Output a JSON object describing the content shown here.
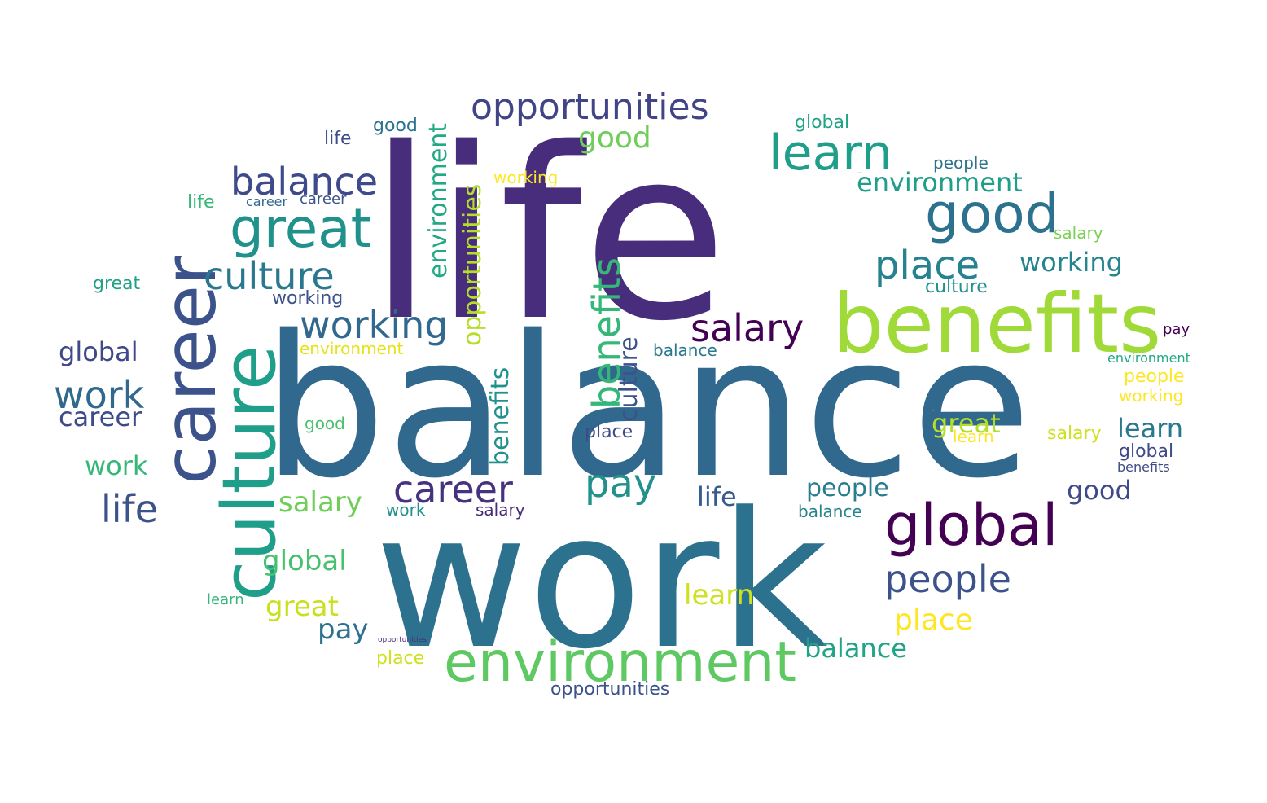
{
  "words": [
    {
      "t": "life",
      "c": "#472d7b"
    },
    {
      "t": "balance",
      "c": "#31688e"
    },
    {
      "t": "work",
      "c": "#2c728e"
    },
    {
      "t": "benefits",
      "c": "#a0da39"
    },
    {
      "t": "career",
      "c": "#3b528b"
    },
    {
      "t": "culture",
      "c": "#1f9e89"
    },
    {
      "t": "environment",
      "c": "#5ec962"
    },
    {
      "t": "global",
      "c": "#440154"
    },
    {
      "t": "opportunities",
      "c": "#414487"
    },
    {
      "t": "great",
      "c": "#21918c"
    },
    {
      "t": "good",
      "c": "#2c728e"
    },
    {
      "t": "learn",
      "c": "#1f9e89"
    },
    {
      "t": "salary",
      "c": "#440154"
    },
    {
      "t": "place",
      "c": "#26828e"
    },
    {
      "t": "people",
      "c": "#3b528b"
    },
    {
      "t": "balance",
      "c": "#3e4a89"
    },
    {
      "t": "culture",
      "c": "#2a788e"
    },
    {
      "t": "working",
      "c": "#31688e"
    },
    {
      "t": "career",
      "c": "#46327e"
    },
    {
      "t": "pay",
      "c": "#21918c"
    },
    {
      "t": "environment",
      "c": "#1f9e89"
    },
    {
      "t": "benefits",
      "c": "#35b779"
    },
    {
      "t": "opportunities",
      "c": "#b5de2b"
    },
    {
      "t": "environment",
      "c": "#22a884"
    },
    {
      "t": "benefits",
      "c": "#21918c"
    },
    {
      "t": "culture",
      "c": "#3b528b"
    },
    {
      "t": "work",
      "c": "#31688e"
    },
    {
      "t": "life",
      "c": "#3b528b"
    },
    {
      "t": "great",
      "c": "#c8e020"
    },
    {
      "t": "people",
      "c": "#287c8e"
    },
    {
      "t": "good",
      "c": "#6ece58"
    },
    {
      "t": "place",
      "c": "#fde725"
    },
    {
      "t": "learn",
      "c": "#cde11d"
    },
    {
      "t": "global",
      "c": "#48c16e"
    },
    {
      "t": "salary",
      "c": "#6ece58"
    },
    {
      "t": "global",
      "c": "#3f4889"
    },
    {
      "t": "career",
      "c": "#3e4a89"
    },
    {
      "t": "work",
      "c": "#35b779"
    },
    {
      "t": "working",
      "c": "#25848e"
    },
    {
      "t": "environment",
      "c": "#287c8e"
    },
    {
      "t": "balance",
      "c": "#20a386"
    },
    {
      "t": "great",
      "c": "#b5de2b"
    },
    {
      "t": "pay",
      "c": "#2c728e"
    },
    {
      "t": "good",
      "c": "#3e4a89"
    },
    {
      "t": "life",
      "c": "#365c8d"
    },
    {
      "t": "opportunities",
      "c": "#3b528b"
    },
    {
      "t": "learn",
      "c": "#fde725"
    },
    {
      "t": "working",
      "c": "#fde725"
    },
    {
      "t": "salary",
      "c": "#cde11d"
    },
    {
      "t": "great",
      "c": "#fde725"
    },
    {
      "t": "learn",
      "c": "#2a788e"
    },
    {
      "t": "people",
      "c": "#fde725"
    },
    {
      "t": "working",
      "c": "#3b528b"
    },
    {
      "t": "global",
      "c": "#3e4a89"
    },
    {
      "t": "benefits",
      "c": "#3e4a89"
    },
    {
      "t": "place",
      "c": "#cde11d"
    },
    {
      "t": "pay",
      "c": "#440154"
    },
    {
      "t": "environment",
      "c": "#22a884"
    },
    {
      "t": "good",
      "c": "#2c728e"
    },
    {
      "t": "global",
      "c": "#20a386"
    },
    {
      "t": "salary",
      "c": "#7ad151"
    },
    {
      "t": "life",
      "c": "#35b779"
    },
    {
      "t": "career",
      "c": "#31688e"
    },
    {
      "t": "culture",
      "c": "#21918c"
    },
    {
      "t": "great",
      "c": "#1fa187"
    },
    {
      "t": "people",
      "c": "#2c728e"
    },
    {
      "t": "learn",
      "c": "#35b779"
    },
    {
      "t": "balance",
      "c": "#25848e"
    },
    {
      "t": "work",
      "c": "#21918c"
    },
    {
      "t": "opportunities",
      "c": "#482878"
    },
    {
      "t": "salary",
      "c": "#472c7a"
    },
    {
      "t": "environment",
      "c": "#e5e419"
    },
    {
      "t": "place",
      "c": "#3e4a89"
    },
    {
      "t": "working",
      "c": "#fde725"
    },
    {
      "t": "good",
      "c": "#4ac16d"
    },
    {
      "t": "life",
      "c": "#3e4a89"
    },
    {
      "t": "career",
      "c": "#3b528b"
    },
    {
      "t": "balance",
      "c": "#2a788e"
    },
    {
      "t": "culture",
      "c": "#2a788e"
    }
  ]
}
